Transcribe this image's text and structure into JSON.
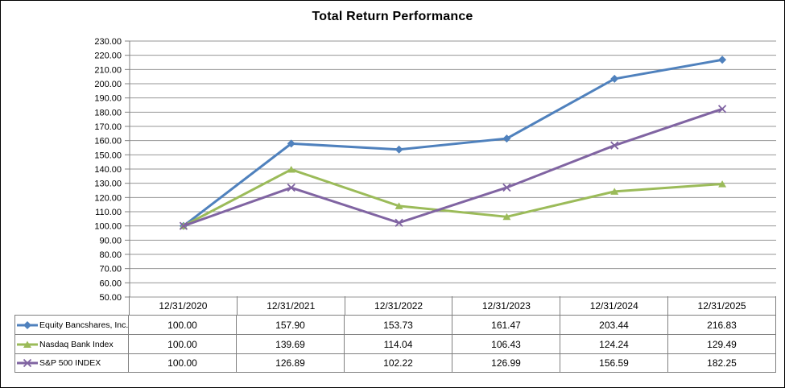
{
  "window": {
    "background_color": "#ffffff",
    "border_color": "#000000"
  },
  "chart_data": {
    "type": "line",
    "title": "Total Return Performance",
    "categories": [
      "12/31/2020",
      "12/31/2021",
      "12/31/2022",
      "12/31/2023",
      "12/31/2024",
      "12/31/2025"
    ],
    "series": [
      {
        "name": "Equity Bancshares, Inc.",
        "color": "#4F81BD",
        "marker": "diamond",
        "values": [
          100.0,
          157.9,
          153.73,
          161.47,
          203.44,
          216.83
        ]
      },
      {
        "name": "Nasdaq Bank Index",
        "color": "#9BBB59",
        "marker": "triangle",
        "values": [
          100.0,
          139.69,
          114.04,
          106.43,
          124.24,
          129.49
        ]
      },
      {
        "name": "S&P 500 INDEX",
        "color": "#8064A2",
        "marker": "x",
        "values": [
          100.0,
          126.89,
          102.22,
          126.99,
          156.59,
          182.25
        ]
      }
    ],
    "ylim": [
      50,
      230
    ],
    "ytick_step": 10,
    "ytick_format": "2dp",
    "value_format": "2dp",
    "grid": true,
    "legend_position": "data-table-left",
    "gridline_color": "#969696",
    "axis_color": "#808080",
    "table_border_color": "#808080",
    "text_color": "#000000"
  }
}
